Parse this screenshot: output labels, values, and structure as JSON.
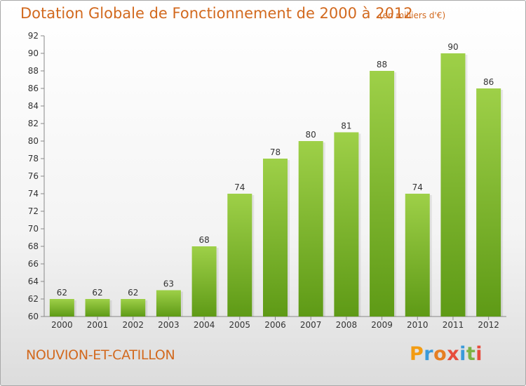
{
  "title": "Dotation Globale de Fonctionnement de 2000 à 2012",
  "subtitle": "(en milliers d'€)",
  "commune": "NOUVION-ET-CATILLON",
  "logo": {
    "letters": [
      "P",
      "r",
      "o",
      "x",
      "i",
      "t",
      "i"
    ],
    "colors": [
      "#f39c12",
      "#3a9ad9",
      "#e67e22",
      "#e74c3c",
      "#3a9ad9",
      "#7cb342",
      "#e74c3c"
    ]
  },
  "colors": {
    "title": "#d2691e",
    "bar_top": "#9ed048",
    "bar_bottom": "#5e9a16",
    "axis": "#888888",
    "text": "#333333"
  },
  "chart_data": {
    "type": "bar",
    "categories": [
      "2000",
      "2001",
      "2002",
      "2003",
      "2004",
      "2005",
      "2006",
      "2007",
      "2008",
      "2009",
      "2010",
      "2011",
      "2012"
    ],
    "values": [
      62,
      62,
      62,
      63,
      68,
      74,
      78,
      80,
      81,
      88,
      74,
      90,
      86
    ],
    "data_labels": [
      "62",
      "62",
      "62",
      "63",
      "68",
      "74",
      "78",
      "80",
      "81",
      "88",
      "74",
      "90",
      "86"
    ],
    "ylim": [
      60,
      92
    ],
    "yticks": [
      "60",
      "62",
      "64",
      "66",
      "68",
      "70",
      "72",
      "74",
      "76",
      "78",
      "80",
      "82",
      "84",
      "86",
      "88",
      "90",
      "92"
    ],
    "title": "Dotation Globale de Fonctionnement de 2000 à 2012",
    "xlabel": "",
    "ylabel": "",
    "grid": false,
    "legend": "none"
  }
}
